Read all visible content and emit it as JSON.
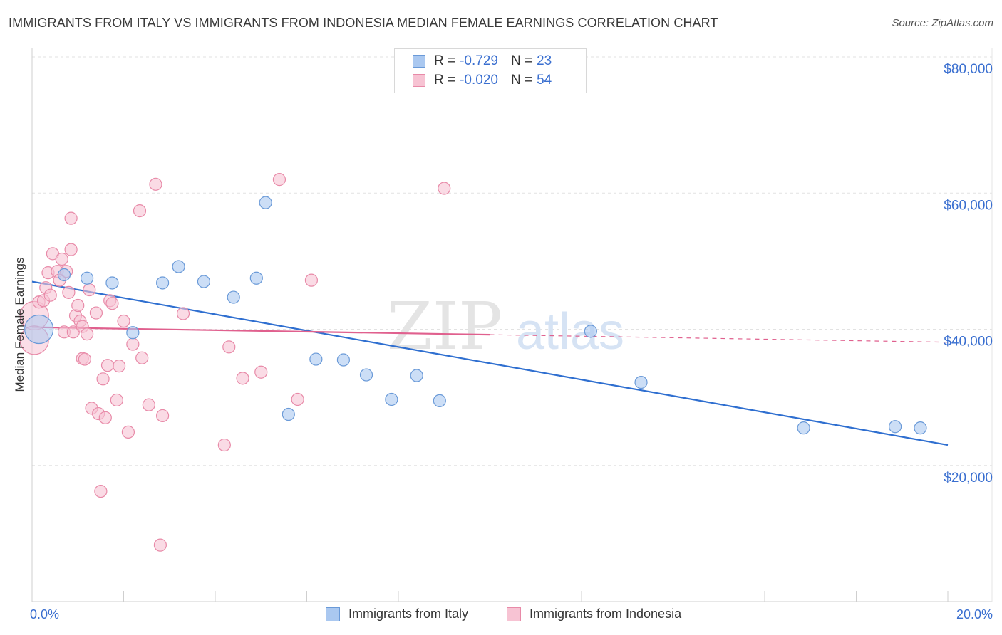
{
  "header": {
    "title": "IMMIGRANTS FROM ITALY VS IMMIGRANTS FROM INDONESIA MEDIAN FEMALE EARNINGS CORRELATION CHART",
    "source": "Source: ZipAtlas.com"
  },
  "watermark": {
    "zip": "ZIP",
    "atlas": "atlas"
  },
  "legend_top": {
    "rows": [
      {
        "r_label": "R =",
        "r_value": "-0.729",
        "n_label": "N =",
        "n_value": "23",
        "color": "#aac8f0",
        "border": "#6a9ad8"
      },
      {
        "r_label": "R =",
        "r_value": "-0.020",
        "n_label": "N =",
        "n_value": "54",
        "color": "#f7c3d3",
        "border": "#e88aa8"
      }
    ]
  },
  "legend_bottom": {
    "italy": "Immigrants from Italy",
    "indonesia": "Immigrants from Indonesia"
  },
  "colors": {
    "italy_fill": "#aac8f0",
    "italy_stroke": "#6a9ad8",
    "italy_line": "#2f6fd0",
    "indonesia_fill": "#f7c3d3",
    "indonesia_stroke": "#e88aa8",
    "indonesia_line": "#e0608e",
    "tick_label": "#3a6fd0"
  },
  "chart_data": {
    "type": "scatter",
    "title": "IMMIGRANTS FROM ITALY VS IMMIGRANTS FROM INDONESIA MEDIAN FEMALE EARNINGS CORRELATION CHART",
    "xlabel": "",
    "ylabel": "Median Female Earnings",
    "xlim": [
      0,
      20
    ],
    "ylim": [
      0,
      80000
    ],
    "x_tick_labels": [
      {
        "value": 0,
        "label": "0.0%"
      },
      {
        "value": 20,
        "label": "20.0%"
      }
    ],
    "y_tick_labels": [
      {
        "value": 20000,
        "label": "$20,000"
      },
      {
        "value": 40000,
        "label": "$40,000"
      },
      {
        "value": 60000,
        "label": "$60,000"
      },
      {
        "value": 80000,
        "label": "$80,000"
      }
    ],
    "series": [
      {
        "name": "Immigrants from Italy",
        "R": -0.729,
        "N": 23,
        "trend": {
          "x": [
            0.0,
            20.0
          ],
          "y": [
            47000,
            23000
          ]
        },
        "points": [
          [
            0.15,
            40000,
            "large"
          ],
          [
            0.7,
            48000
          ],
          [
            1.2,
            47500
          ],
          [
            1.75,
            46800
          ],
          [
            2.2,
            39500
          ],
          [
            2.85,
            46800
          ],
          [
            3.2,
            49200
          ],
          [
            3.75,
            47000
          ],
          [
            4.4,
            44700
          ],
          [
            4.9,
            47500
          ],
          [
            5.1,
            58600
          ],
          [
            5.6,
            27500
          ],
          [
            6.2,
            35600
          ],
          [
            6.8,
            35500
          ],
          [
            7.3,
            33300
          ],
          [
            7.85,
            29700
          ],
          [
            8.4,
            33200
          ],
          [
            8.9,
            29500
          ],
          [
            12.2,
            39700
          ],
          [
            13.3,
            32200
          ],
          [
            16.85,
            25500
          ],
          [
            18.85,
            25700
          ],
          [
            19.4,
            25500
          ]
        ]
      },
      {
        "name": "Immigrants from Indonesia",
        "R": -0.02,
        "N": 54,
        "trend": {
          "x": [
            0.0,
            10.0
          ],
          "y": [
            40300,
            39200
          ]
        },
        "trend_dashed": {
          "x": [
            10.0,
            20.0
          ],
          "y": [
            39200,
            38100
          ]
        },
        "points": [
          [
            0.05,
            42000,
            "large"
          ],
          [
            0.05,
            38400,
            "large"
          ],
          [
            0.15,
            44000
          ],
          [
            0.25,
            44200
          ],
          [
            0.3,
            46100
          ],
          [
            0.35,
            48300
          ],
          [
            0.4,
            45000
          ],
          [
            0.45,
            51100
          ],
          [
            0.55,
            48500
          ],
          [
            0.6,
            47200
          ],
          [
            0.65,
            50300
          ],
          [
            0.7,
            39600
          ],
          [
            0.75,
            48500
          ],
          [
            0.8,
            45400
          ],
          [
            0.85,
            51700
          ],
          [
            0.85,
            56300
          ],
          [
            0.9,
            39600
          ],
          [
            0.95,
            42000
          ],
          [
            1.0,
            43500
          ],
          [
            1.05,
            41200
          ],
          [
            1.1,
            40400
          ],
          [
            1.1,
            35700
          ],
          [
            1.15,
            35600
          ],
          [
            1.2,
            39300
          ],
          [
            1.25,
            45800
          ],
          [
            1.3,
            28400
          ],
          [
            1.4,
            42400
          ],
          [
            1.45,
            27600
          ],
          [
            1.5,
            16200
          ],
          [
            1.55,
            32700
          ],
          [
            1.6,
            27000
          ],
          [
            1.65,
            34700
          ],
          [
            1.7,
            44200
          ],
          [
            1.75,
            43800
          ],
          [
            1.85,
            29600
          ],
          [
            1.9,
            34600
          ],
          [
            2.0,
            41200
          ],
          [
            2.1,
            24900
          ],
          [
            2.2,
            37800
          ],
          [
            2.35,
            57400
          ],
          [
            2.4,
            35800
          ],
          [
            2.55,
            28900
          ],
          [
            2.7,
            61300
          ],
          [
            2.8,
            8300
          ],
          [
            2.85,
            27300
          ],
          [
            3.3,
            42300
          ],
          [
            4.2,
            23000
          ],
          [
            4.3,
            37400
          ],
          [
            4.6,
            32800
          ],
          [
            5.0,
            33700
          ],
          [
            5.4,
            62000
          ],
          [
            5.8,
            29700
          ],
          [
            6.1,
            47200
          ],
          [
            9.0,
            60700
          ]
        ]
      }
    ]
  }
}
